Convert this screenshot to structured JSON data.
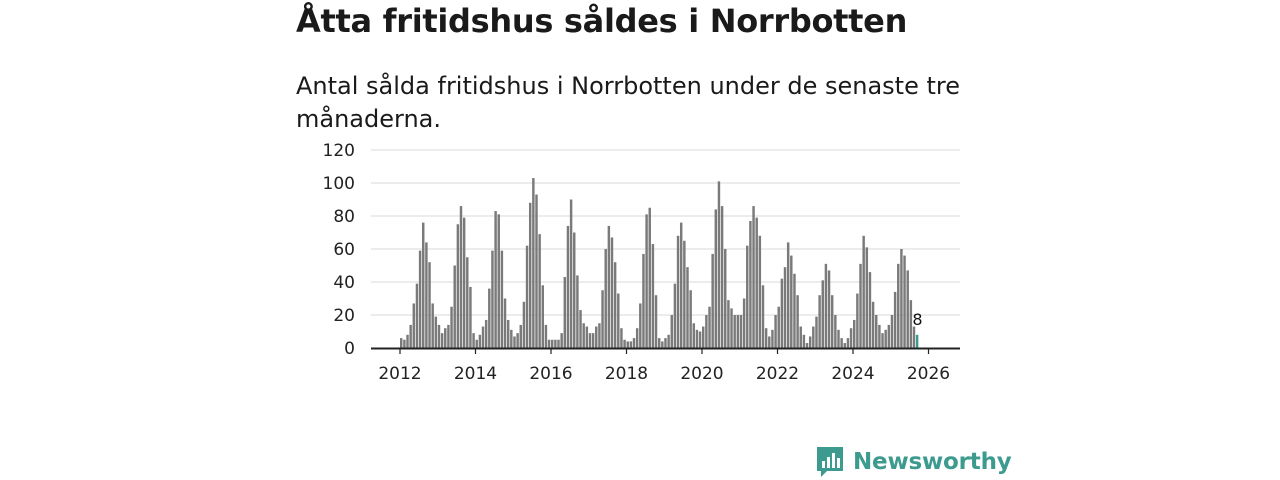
{
  "title": "Åtta fritidshus såldes i Norrbotten",
  "subtitle": "Antal sålda fritidshus i Norrbotten under de senaste tre månaderna.",
  "brand": {
    "name": "Newsworthy",
    "icon": "bar-chart-logo-icon",
    "color": "#3d9a8e"
  },
  "chart_data": {
    "type": "bar",
    "title": "Åtta fritidshus såldes i Norrbotten",
    "xlabel": "",
    "ylabel": "",
    "ylim": [
      0,
      120
    ],
    "yticks": [
      0,
      20,
      40,
      60,
      80,
      100,
      120
    ],
    "xticks": [
      "2012",
      "2014",
      "2016",
      "2018",
      "2020",
      "2022",
      "2024",
      "2026"
    ],
    "grid": true,
    "bar_color": "#7a7a7a",
    "highlight_color": "#3d9a8e",
    "start": "2012-01",
    "highlight_label": "8",
    "values": [
      6,
      5,
      8,
      14,
      27,
      39,
      59,
      76,
      64,
      52,
      27,
      19,
      14,
      9,
      12,
      14,
      25,
      50,
      75,
      86,
      79,
      55,
      37,
      9,
      5,
      8,
      13,
      17,
      36,
      59,
      83,
      81,
      59,
      30,
      17,
      11,
      7,
      9,
      14,
      28,
      62,
      88,
      103,
      93,
      69,
      38,
      14,
      5,
      5,
      5,
      5,
      9,
      43,
      74,
      90,
      70,
      44,
      23,
      15,
      13,
      9,
      9,
      13,
      15,
      35,
      60,
      74,
      67,
      52,
      33,
      12,
      5,
      4,
      4,
      6,
      12,
      27,
      57,
      81,
      85,
      63,
      32,
      6,
      4,
      6,
      8,
      20,
      39,
      68,
      76,
      65,
      49,
      35,
      15,
      11,
      10,
      13,
      20,
      25,
      57,
      84,
      101,
      86,
      60,
      29,
      24,
      20,
      20,
      20,
      30,
      62,
      77,
      86,
      79,
      68,
      38,
      12,
      7,
      11,
      20,
      25,
      42,
      49,
      64,
      56,
      45,
      32,
      13,
      8,
      3,
      7,
      13,
      19,
      32,
      41,
      51,
      47,
      32,
      20,
      11,
      6,
      3,
      6,
      12,
      17,
      33,
      51,
      68,
      61,
      46,
      28,
      20,
      14,
      9,
      11,
      14,
      20,
      34,
      51,
      60,
      56,
      47,
      29,
      13,
      8
    ]
  }
}
